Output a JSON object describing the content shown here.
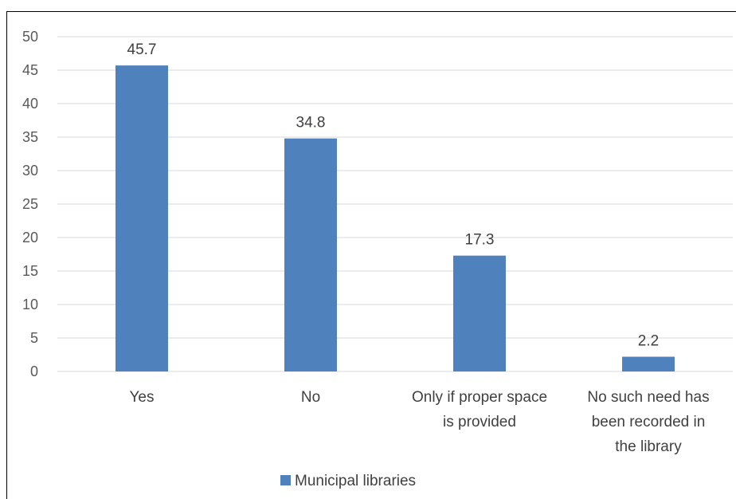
{
  "chart_data": {
    "type": "bar",
    "title": "",
    "xlabel": "",
    "ylabel": "",
    "categories": [
      [
        "Yes"
      ],
      [
        "No"
      ],
      [
        "Only if proper space",
        "is provided"
      ],
      [
        "No such need has",
        "been recorded in",
        "the library"
      ]
    ],
    "series": [
      {
        "name": "Municipal libraries",
        "values": [
          45.7,
          34.8,
          17.3,
          2.2
        ],
        "color": "#4f81bd"
      }
    ],
    "ylim": [
      0,
      50
    ],
    "yticks": [
      0,
      5,
      10,
      15,
      20,
      25,
      30,
      35,
      40,
      45,
      50
    ],
    "grid": true,
    "gridColor": "#d9d9d9",
    "legend": "bottom"
  }
}
